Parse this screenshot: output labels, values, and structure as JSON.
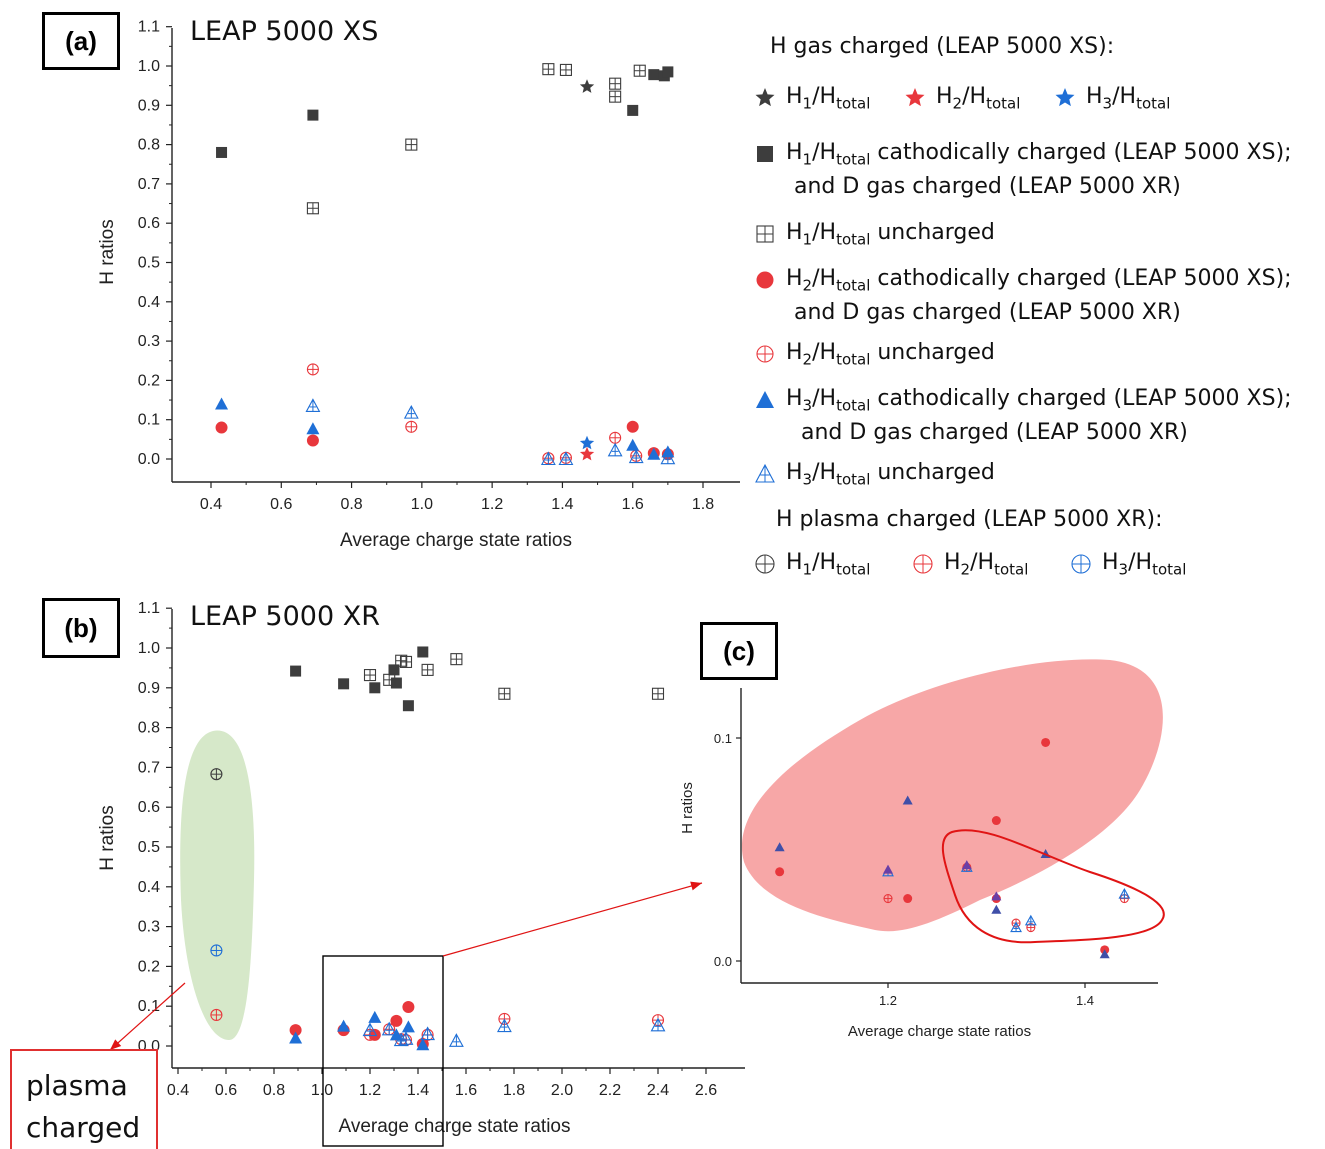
{
  "panels": {
    "a": {
      "tag": "(a)",
      "instrument": "LEAP 5000 XS",
      "xlabel": "Average charge state ratios",
      "ylabel": "H ratios",
      "xticks": [
        "0.4",
        "0.6",
        "0.8",
        "1.0",
        "1.2",
        "1.4",
        "1.6",
        "1.8"
      ],
      "yticks": [
        "0.0",
        "0.1",
        "0.2",
        "0.3",
        "0.4",
        "0.5",
        "0.6",
        "0.7",
        "0.8",
        "0.9",
        "1.0",
        "1.1"
      ]
    },
    "b": {
      "tag": "(b)",
      "instrument": "LEAP 5000 XR",
      "xlabel": "Average charge state ratios",
      "ylabel": "H ratios",
      "xticks": [
        "0.4",
        "0.6",
        "0.8",
        "1.0",
        "1.2",
        "1.4",
        "1.6",
        "1.8",
        "2.0",
        "2.2",
        "2.4",
        "2.6"
      ],
      "yticks": [
        "0.0",
        "0.1",
        "0.2",
        "0.3",
        "0.4",
        "0.5",
        "0.6",
        "0.7",
        "0.8",
        "0.9",
        "1.0",
        "1.1"
      ]
    },
    "c": {
      "tag": "(c)",
      "xlabel": "Average charge state ratios",
      "ylabel": "H ratios",
      "xticks": [
        "1.2",
        "1.4"
      ],
      "yticks": [
        "0.0",
        "0.1"
      ]
    }
  },
  "plasma_label": [
    "plasma",
    "charged"
  ],
  "colors": {
    "h1": "#3d3d3d",
    "h2": "#e8373c",
    "h3": "#1f6fd6",
    "green_region": "#d6e8c9",
    "red_region": "#f7a7a7",
    "red_outline": "#e01414"
  },
  "legend": {
    "gas_header": "H gas charged (LEAP 5000 XS):",
    "gas_items": [
      {
        "main": "H",
        "sub1": "1",
        "mid": "/H",
        "sub2": "total",
        "marker": "star",
        "color": "#3d3d3d"
      },
      {
        "main": "H",
        "sub1": "2",
        "mid": "/H",
        "sub2": "total",
        "marker": "star",
        "color": "#e8373c"
      },
      {
        "main": "H",
        "sub1": "3",
        "mid": "/H",
        "sub2": "total",
        "marker": "star",
        "color": "#1f6fd6"
      }
    ],
    "rows": [
      {
        "marker": "square",
        "sym": "H",
        "sub1": "1",
        "mid": "/H",
        "sub2": "total",
        "text": " cathodically charged (LEAP 5000 XS);",
        "line2": "and D gas charged (LEAP 5000 XR)"
      },
      {
        "marker": "square-open",
        "sym": "H",
        "sub1": "1",
        "mid": "/H",
        "sub2": "total",
        "text": " uncharged",
        "line2": ""
      },
      {
        "marker": "circle",
        "sym": "H",
        "sub1": "2",
        "mid": "/H",
        "sub2": "total",
        "text": " cathodically charged (LEAP 5000 XS);",
        "line2": "and D gas charged (LEAP 5000 XR)"
      },
      {
        "marker": "circle-open",
        "sym": "H",
        "sub1": "2",
        "mid": "/H",
        "sub2": "total",
        "text": " uncharged",
        "line2": ""
      },
      {
        "marker": "triangle",
        "sym": "H",
        "sub1": "3",
        "mid": "/H",
        "sub2": "total",
        "text": " cathodically charged (LEAP 5000 XS);",
        "line2": "and D gas charged (LEAP 5000 XR)"
      },
      {
        "marker": "triangle-open",
        "sym": "H",
        "sub1": "3",
        "mid": "/H",
        "sub2": "total",
        "text": " uncharged",
        "line2": ""
      }
    ],
    "plasma_header": "H plasma charged (LEAP 5000 XR):",
    "plasma_items": [
      {
        "main": "H",
        "sub1": "1",
        "mid": "/H",
        "sub2": "total",
        "color": "#3d3d3d"
      },
      {
        "main": "H",
        "sub1": "2",
        "mid": "/H",
        "sub2": "total",
        "color": "#e8373c"
      },
      {
        "main": "H",
        "sub1": "3",
        "mid": "/H",
        "sub2": "total",
        "color": "#1f6fd6"
      }
    ]
  },
  "chart_data": [
    {
      "panel": "a",
      "type": "scatter",
      "xlabel": "Average charge state ratios",
      "ylabel": "H ratios",
      "xlim": [
        0.3,
        1.95
      ],
      "ylim": [
        -0.05,
        1.1
      ],
      "series": [
        {
          "name": "H1/Htotal cathodically charged",
          "marker": "square",
          "color": "#3d3d3d",
          "points": [
            [
              0.43,
              0.78
            ],
            [
              0.69,
              0.875
            ],
            [
              1.6,
              0.887
            ],
            [
              1.66,
              0.978
            ],
            [
              1.69,
              0.975
            ],
            [
              1.7,
              0.985
            ]
          ]
        },
        {
          "name": "H1/Htotal uncharged",
          "marker": "square-open",
          "color": "#3d3d3d",
          "points": [
            [
              0.69,
              0.638
            ],
            [
              0.97,
              0.8
            ],
            [
              1.36,
              0.992
            ],
            [
              1.41,
              0.99
            ],
            [
              1.55,
              0.955
            ],
            [
              1.55,
              0.922
            ],
            [
              1.62,
              0.988
            ]
          ]
        },
        {
          "name": "H1/Htotal gas charged",
          "marker": "star",
          "color": "#3d3d3d",
          "points": [
            [
              1.47,
              0.947
            ]
          ]
        },
        {
          "name": "H2/Htotal cathodically charged",
          "marker": "circle",
          "color": "#e8373c",
          "points": [
            [
              0.43,
              0.08
            ],
            [
              0.69,
              0.047
            ],
            [
              1.6,
              0.082
            ],
            [
              1.66,
              0.015
            ],
            [
              1.7,
              0.012
            ]
          ]
        },
        {
          "name": "H2/Htotal uncharged",
          "marker": "circle-open",
          "color": "#e8373c",
          "points": [
            [
              0.69,
              0.228
            ],
            [
              0.97,
              0.082
            ],
            [
              1.36,
              0.002
            ],
            [
              1.41,
              0.003
            ],
            [
              1.55,
              0.054
            ],
            [
              1.61,
              0.008
            ]
          ]
        },
        {
          "name": "H2/Htotal gas charged",
          "marker": "star",
          "color": "#e8373c",
          "points": [
            [
              1.47,
              0.012
            ]
          ]
        },
        {
          "name": "H3/Htotal cathodically charged",
          "marker": "triangle",
          "color": "#1f6fd6",
          "points": [
            [
              0.43,
              0.14
            ],
            [
              0.69,
              0.077
            ],
            [
              1.6,
              0.035
            ],
            [
              1.66,
              0.012
            ],
            [
              1.7,
              0.018
            ]
          ]
        },
        {
          "name": "H3/Htotal uncharged",
          "marker": "triangle-open",
          "color": "#1f6fd6",
          "points": [
            [
              0.69,
              0.135
            ],
            [
              0.97,
              0.118
            ],
            [
              1.36,
              0.0
            ],
            [
              1.41,
              0.0
            ],
            [
              1.55,
              0.022
            ],
            [
              1.61,
              0.005
            ],
            [
              1.7,
              0.002
            ]
          ]
        },
        {
          "name": "H3/Htotal gas charged",
          "marker": "star",
          "color": "#1f6fd6",
          "points": [
            [
              1.47,
              0.04
            ]
          ]
        }
      ]
    },
    {
      "panel": "b",
      "type": "scatter",
      "xlabel": "Average charge state ratios",
      "ylabel": "H ratios",
      "xlim": [
        0.4,
        2.65
      ],
      "ylim": [
        -0.05,
        1.1
      ],
      "series": [
        {
          "name": "H1/Htotal D gas charged",
          "marker": "square",
          "color": "#3d3d3d",
          "points": [
            [
              0.89,
              0.942
            ],
            [
              1.09,
              0.91
            ],
            [
              1.22,
              0.9
            ],
            [
              1.3,
              0.945
            ],
            [
              1.31,
              0.912
            ],
            [
              1.36,
              0.855
            ],
            [
              1.42,
              0.99
            ]
          ]
        },
        {
          "name": "H1/Htotal uncharged",
          "marker": "square-open",
          "color": "#3d3d3d",
          "points": [
            [
              1.2,
              0.932
            ],
            [
              1.28,
              0.92
            ],
            [
              1.33,
              0.968
            ],
            [
              1.35,
              0.965
            ],
            [
              1.44,
              0.945
            ],
            [
              1.56,
              0.972
            ],
            [
              1.76,
              0.885
            ],
            [
              2.4,
              0.885
            ]
          ]
        },
        {
          "name": "H1/Htotal plasma charged",
          "marker": "circle-plus",
          "color": "#3d3d3d",
          "points": [
            [
              0.56,
              0.683
            ]
          ]
        },
        {
          "name": "H2/Htotal D gas charged",
          "marker": "circle",
          "color": "#e8373c",
          "points": [
            [
              0.89,
              0.04
            ],
            [
              1.09,
              0.04
            ],
            [
              1.22,
              0.028
            ],
            [
              1.31,
              0.063
            ],
            [
              1.36,
              0.098
            ],
            [
              1.42,
              0.005
            ]
          ]
        },
        {
          "name": "H2/Htotal uncharged",
          "marker": "circle-open",
          "color": "#e8373c",
          "points": [
            [
              1.2,
              0.028
            ],
            [
              1.28,
              0.042
            ],
            [
              1.33,
              0.017
            ],
            [
              1.35,
              0.015
            ],
            [
              1.44,
              0.028
            ],
            [
              1.76,
              0.068
            ],
            [
              2.4,
              0.065
            ]
          ]
        },
        {
          "name": "H2/Htotal plasma charged",
          "marker": "circle-plus",
          "color": "#e8373c",
          "points": [
            [
              0.56,
              0.078
            ]
          ]
        },
        {
          "name": "H3/Htotal D gas charged",
          "marker": "triangle",
          "color": "#1f6fd6",
          "points": [
            [
              0.89,
              0.02
            ],
            [
              1.09,
              0.05
            ],
            [
              1.22,
              0.072
            ],
            [
              1.31,
              0.028
            ],
            [
              1.36,
              0.048
            ],
            [
              1.42,
              0.003
            ]
          ]
        },
        {
          "name": "H3/Htotal uncharged",
          "marker": "triangle-open",
          "color": "#1f6fd6",
          "points": [
            [
              1.2,
              0.04
            ],
            [
              1.28,
              0.042
            ],
            [
              1.33,
              0.015
            ],
            [
              1.35,
              0.018
            ],
            [
              1.44,
              0.03
            ],
            [
              1.56,
              0.013
            ],
            [
              1.76,
              0.05
            ],
            [
              2.4,
              0.052
            ]
          ]
        },
        {
          "name": "H3/Htotal plasma charged",
          "marker": "circle-plus",
          "color": "#1f6fd6",
          "points": [
            [
              0.56,
              0.24
            ]
          ]
        }
      ]
    },
    {
      "panel": "c",
      "type": "scatter",
      "xlabel": "Average charge state ratios",
      "ylabel": "H ratios",
      "xlim": [
        1.05,
        1.48
      ],
      "ylim": [
        -0.01,
        0.12
      ],
      "series": [
        {
          "name": "H2/Htotal D gas charged",
          "marker": "circle",
          "color": "#e8373c",
          "points": [
            [
              1.09,
              0.04
            ],
            [
              1.22,
              0.028
            ],
            [
              1.31,
              0.028
            ],
            [
              1.31,
              0.063
            ],
            [
              1.36,
              0.098
            ],
            [
              1.42,
              0.005
            ]
          ]
        },
        {
          "name": "H3/Htotal D gas charged",
          "marker": "triangle",
          "color": "#3f4fa8",
          "points": [
            [
              1.09,
              0.051
            ],
            [
              1.22,
              0.072
            ],
            [
              1.31,
              0.023
            ],
            [
              1.36,
              0.048
            ],
            [
              1.42,
              0.003
            ]
          ]
        },
        {
          "name": "H2/Htotal uncharged",
          "marker": "circle-open",
          "color": "#e8373c",
          "points": [
            [
              1.2,
              0.028
            ],
            [
              1.28,
              0.042
            ],
            [
              1.33,
              0.017
            ],
            [
              1.345,
              0.015
            ],
            [
              1.44,
              0.028
            ]
          ]
        },
        {
          "name": "H3/Htotal uncharged",
          "marker": "triangle-open",
          "color": "#1f6fd6",
          "points": [
            [
              1.2,
              0.04
            ],
            [
              1.28,
              0.042
            ],
            [
              1.33,
              0.015
            ],
            [
              1.345,
              0.018
            ],
            [
              1.44,
              0.03
            ]
          ]
        },
        {
          "name": "H3/Htotal D gas charged (violet)",
          "marker": "triangle",
          "color": "#6a3fa6",
          "points": [
            [
              1.2,
              0.041
            ],
            [
              1.28,
              0.043
            ],
            [
              1.31,
              0.029
            ]
          ]
        }
      ]
    }
  ]
}
